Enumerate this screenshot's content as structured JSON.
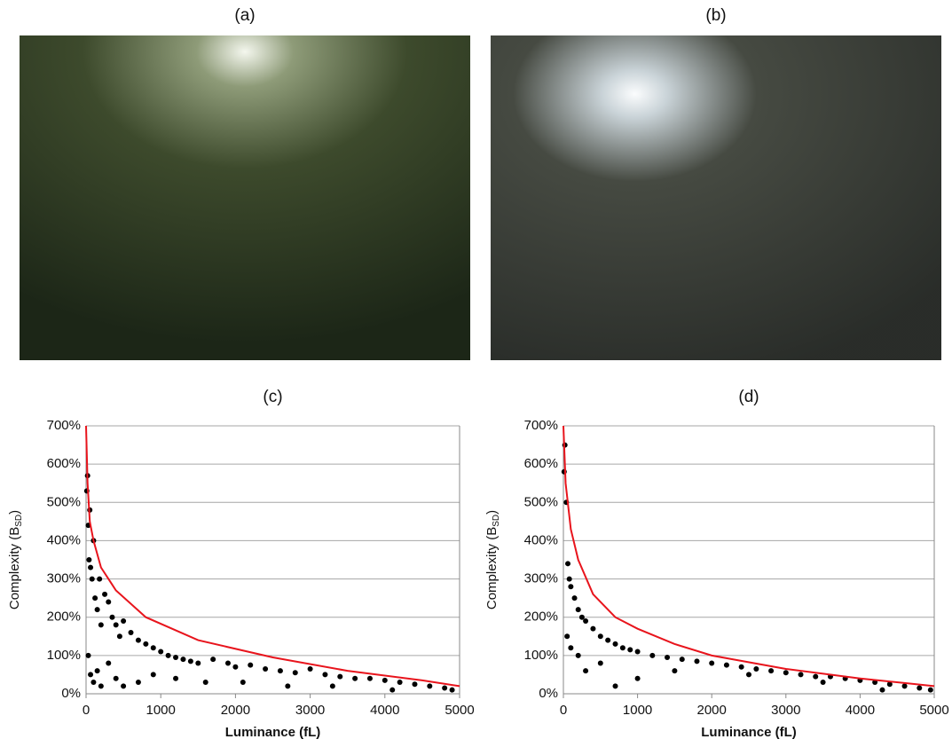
{
  "photos": [
    {
      "label": "(a)"
    },
    {
      "label": "(b)"
    }
  ],
  "chart_data": [
    {
      "type": "scatter",
      "title": "(c)",
      "x_label": "Luminance (fL)",
      "y_label": {
        "main": "Complexity (B",
        "sub": "SD",
        "end": ")"
      },
      "xlim": [
        0,
        5000
      ],
      "xticks": [
        0,
        1000,
        2000,
        3000,
        4000,
        5000
      ],
      "ylim": [
        0,
        700
      ],
      "yticks": [
        {
          "value": 0,
          "label": "0%"
        },
        {
          "value": 100,
          "label": "100%"
        },
        {
          "value": 200,
          "label": "200%"
        },
        {
          "value": 300,
          "label": "300%"
        },
        {
          "value": 400,
          "label": "400%"
        },
        {
          "value": 500,
          "label": "500%"
        },
        {
          "value": 600,
          "label": "600%"
        },
        {
          "value": 700,
          "label": "700%"
        }
      ],
      "grid": true,
      "points": {
        "color": "#000000",
        "x": [
          10,
          20,
          30,
          40,
          50,
          60,
          80,
          100,
          120,
          150,
          180,
          200,
          250,
          300,
          350,
          400,
          450,
          500,
          600,
          700,
          800,
          900,
          1000,
          1100,
          1200,
          1300,
          1400,
          1500,
          1700,
          1900,
          2000,
          2200,
          2400,
          2600,
          2800,
          3000,
          3200,
          3400,
          3600,
          3800,
          4000,
          4200,
          4400,
          4600,
          4800,
          4900,
          30,
          60,
          100,
          150,
          200,
          300,
          400,
          500,
          700,
          900,
          1200,
          1600,
          2100,
          2700,
          3300,
          4100
        ],
        "values": [
          530,
          570,
          440,
          350,
          480,
          330,
          300,
          400,
          250,
          220,
          300,
          180,
          260,
          240,
          200,
          180,
          150,
          190,
          160,
          140,
          130,
          120,
          110,
          100,
          95,
          90,
          85,
          80,
          90,
          80,
          70,
          75,
          65,
          60,
          55,
          65,
          50,
          45,
          40,
          40,
          35,
          30,
          25,
          20,
          15,
          10,
          100,
          50,
          30,
          60,
          20,
          80,
          40,
          20,
          30,
          50,
          40,
          30,
          30,
          20,
          20,
          10
        ]
      },
      "line": {
        "color": "#e8141c",
        "x": [
          0,
          20,
          50,
          100,
          200,
          400,
          800,
          1500,
          2500,
          3500,
          4500,
          5000
        ],
        "values": [
          700,
          550,
          450,
          400,
          330,
          270,
          200,
          140,
          95,
          60,
          35,
          20
        ]
      }
    },
    {
      "type": "scatter",
      "title": "(d)",
      "x_label": "Luminance (fL)",
      "y_label": {
        "main": "Complexity (B",
        "sub": "SD",
        "end": ")"
      },
      "xlim": [
        0,
        5000
      ],
      "xticks": [
        0,
        1000,
        2000,
        3000,
        4000,
        5000
      ],
      "ylim": [
        0,
        700
      ],
      "yticks": [
        {
          "value": 0,
          "label": "0%"
        },
        {
          "value": 100,
          "label": "100%"
        },
        {
          "value": 200,
          "label": "200%"
        },
        {
          "value": 300,
          "label": "300%"
        },
        {
          "value": 400,
          "label": "400%"
        },
        {
          "value": 500,
          "label": "500%"
        },
        {
          "value": 600,
          "label": "600%"
        },
        {
          "value": 700,
          "label": "700%"
        }
      ],
      "grid": true,
      "points": {
        "color": "#000000",
        "x": [
          10,
          20,
          40,
          60,
          80,
          100,
          150,
          200,
          250,
          300,
          400,
          500,
          600,
          700,
          800,
          900,
          1000,
          1200,
          1400,
          1600,
          1800,
          2000,
          2200,
          2400,
          2600,
          2800,
          3000,
          3200,
          3400,
          3600,
          3800,
          4000,
          4200,
          4400,
          4600,
          4800,
          4950,
          50,
          100,
          200,
          300,
          500,
          700,
          1000,
          1500,
          2500,
          3500,
          4300
        ],
        "values": [
          580,
          650,
          500,
          340,
          300,
          280,
          250,
          220,
          200,
          190,
          170,
          150,
          140,
          130,
          120,
          115,
          110,
          100,
          95,
          90,
          85,
          80,
          75,
          70,
          65,
          60,
          55,
          50,
          45,
          45,
          40,
          35,
          30,
          25,
          20,
          15,
          10,
          150,
          120,
          100,
          60,
          80,
          20,
          40,
          60,
          50,
          30,
          10
        ]
      },
      "line": {
        "color": "#e8141c",
        "x": [
          0,
          30,
          100,
          200,
          400,
          700,
          1000,
          1500,
          2000,
          3000,
          4000,
          5000
        ],
        "values": [
          700,
          550,
          430,
          350,
          260,
          200,
          170,
          130,
          100,
          65,
          40,
          20
        ]
      }
    }
  ]
}
